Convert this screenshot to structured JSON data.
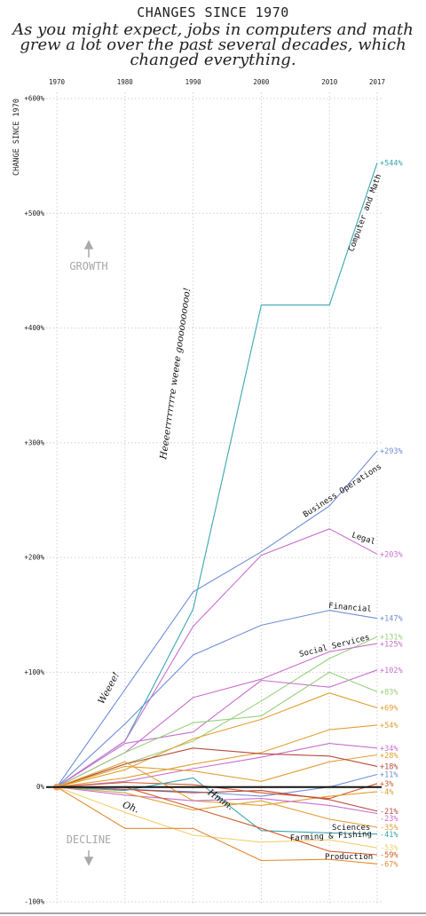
{
  "header": {
    "title": "CHANGES SINCE 1970",
    "subtitle": "As you might expect, jobs in computers and math grew a lot over the past several decades, which changed everything."
  },
  "chart_data": {
    "type": "line",
    "ylabel": "CHANGE SINCE 1970",
    "x": [
      1970,
      1980,
      1990,
      2000,
      2010,
      2017
    ],
    "x_tick_labels": [
      "1970",
      "1980",
      "1990",
      "2000",
      "2010",
      "2017"
    ],
    "ylim": [
      -100,
      600
    ],
    "y_ticks": [
      600,
      500,
      400,
      300,
      200,
      100,
      0,
      -100
    ],
    "y_tick_labels": [
      "+600%",
      "+500%",
      "+400%",
      "+300%",
      "+200%",
      "+100%",
      "0%",
      "-100%"
    ],
    "grid": true,
    "series": [
      {
        "label": "Computer and Math",
        "end_label": "+544%",
        "color": "#3aa6b0",
        "values": [
          0,
          40,
          155,
          420,
          420,
          544
        ]
      },
      {
        "label": "Business Operations",
        "end_label": "+293%",
        "color": "#6f8fd6",
        "values": [
          0,
          85,
          170,
          205,
          245,
          293
        ]
      },
      {
        "label": "Legal",
        "end_label": "+203%",
        "color": "#c86fd0",
        "values": [
          0,
          40,
          140,
          202,
          225,
          203
        ]
      },
      {
        "label": "Financial",
        "end_label": "+147%",
        "color": "#6f8fd6",
        "values": [
          0,
          55,
          115,
          141,
          154,
          147
        ]
      },
      {
        "label": "",
        "end_label": "+131%",
        "color": "#98d07e",
        "values": [
          0,
          20,
          40,
          75,
          112,
          131
        ]
      },
      {
        "label": "Social Services",
        "end_label": "+125%",
        "color": "#c86fd0",
        "values": [
          0,
          30,
          78,
          94,
          118,
          125
        ]
      },
      {
        "label": "",
        "end_label": "+102%",
        "color": "#c86fd0",
        "values": [
          0,
          38,
          48,
          93,
          87,
          102
        ]
      },
      {
        "label": "",
        "end_label": "+83%",
        "color": "#98d07e",
        "values": [
          0,
          30,
          56,
          62,
          100,
          83
        ]
      },
      {
        "label": "",
        "end_label": "+69%",
        "color": "#e0a032",
        "values": [
          0,
          15,
          42,
          59,
          82,
          69
        ]
      },
      {
        "label": "",
        "end_label": "+54%",
        "color": "#e0a032",
        "values": [
          0,
          8,
          20,
          30,
          50,
          54
        ]
      },
      {
        "label": "",
        "end_label": "+34%",
        "color": "#c86fd0",
        "values": [
          0,
          5,
          16,
          26,
          38,
          34
        ]
      },
      {
        "label": "",
        "end_label": "+28%",
        "color": "#e0a032",
        "values": [
          0,
          18,
          14,
          5,
          22,
          28
        ]
      },
      {
        "label": "",
        "end_label": "+18%",
        "color": "#b84a3c",
        "values": [
          0,
          20,
          34,
          29,
          27,
          18
        ]
      },
      {
        "label": "",
        "end_label": "+11%",
        "color": "#6f8fd6",
        "values": [
          0,
          -2,
          -4,
          -8,
          0,
          11
        ]
      },
      {
        "label": "",
        "end_label": "+3%",
        "color": "#d45a2a",
        "values": [
          0,
          4,
          2,
          -5,
          -10,
          3
        ]
      },
      {
        "label": "",
        "end_label": "-4%",
        "color": "#e0a032",
        "values": [
          0,
          22,
          -12,
          -16,
          -8,
          -4
        ]
      },
      {
        "label": "",
        "end_label": "-21%",
        "color": "#b84a3c",
        "values": [
          0,
          -2,
          -5,
          -3,
          -11,
          -21
        ]
      },
      {
        "label": "",
        "end_label": "-23%",
        "color": "#c86fd0",
        "values": [
          0,
          -7,
          -12,
          -10,
          -16,
          -23
        ]
      },
      {
        "label": "",
        "end_label": "-35%",
        "color": "#e0a032",
        "values": [
          0,
          -5,
          -20,
          -12,
          -28,
          -35
        ]
      },
      {
        "label": "Sciences",
        "end_label": "-41%",
        "color": "#3aa6b0",
        "values": [
          0,
          -3,
          8,
          -38,
          -40,
          -41
        ]
      },
      {
        "label": "Farming & Fishing",
        "end_label": "-53%",
        "color": "#f1d070",
        "values": [
          0,
          -22,
          -42,
          -48,
          -46,
          -53
        ]
      },
      {
        "label": "",
        "end_label": "-59%",
        "color": "#d45a2a",
        "values": [
          0,
          0,
          -18,
          -36,
          -56,
          -59
        ]
      },
      {
        "label": "Production",
        "end_label": "-67%",
        "color": "#e0892f",
        "values": [
          0,
          -36,
          -36,
          -64,
          -63,
          -67
        ]
      }
    ],
    "annotations": [
      {
        "text": "Weeee!",
        "x": 1978,
        "y": 85,
        "angle": -62
      },
      {
        "text": "Heeeerrrrrrrre weeee goooooooooo!",
        "x": 1987.8,
        "y": 360,
        "angle": -82
      },
      {
        "text": "Oh.",
        "x": 1980.7,
        "y": -20,
        "angle": 20
      },
      {
        "text": "Hmm.",
        "x": 1993.8,
        "y": -13,
        "angle": 35
      }
    ],
    "zones": {
      "growth": "GROWTH",
      "decline": "DECLINE"
    }
  }
}
